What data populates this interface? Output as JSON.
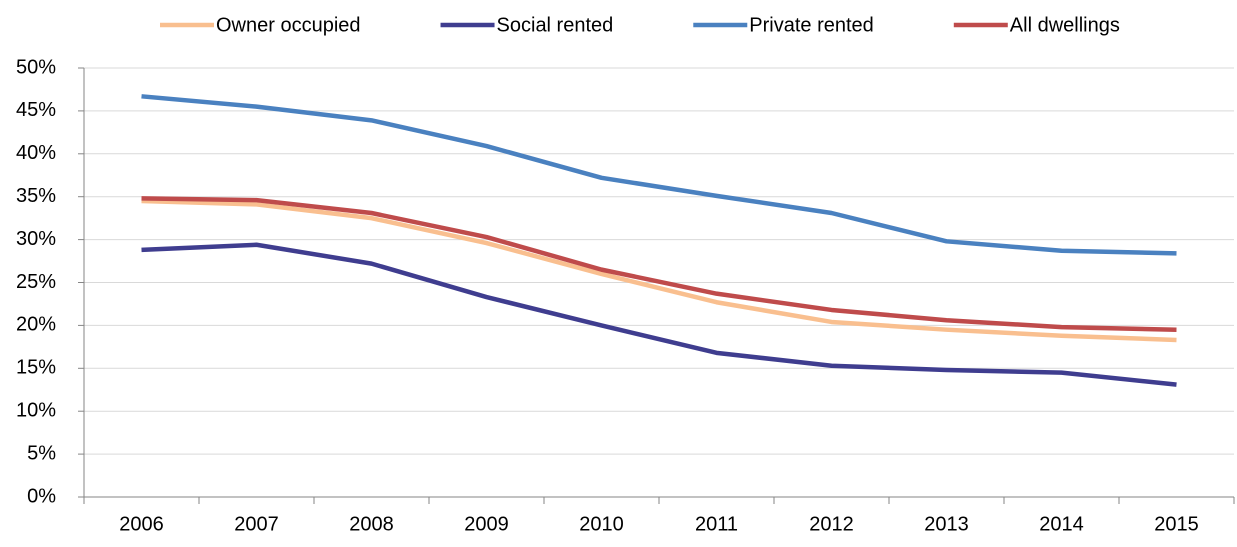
{
  "chart_data": {
    "type": "line",
    "categories": [
      "2006",
      "2007",
      "2008",
      "2009",
      "2010",
      "2011",
      "2012",
      "2013",
      "2014",
      "2015"
    ],
    "series": [
      {
        "name": "Owner occupied",
        "color": "#f9bf8f",
        "values": [
          34.5,
          34.1,
          32.5,
          29.6,
          26.0,
          22.7,
          20.4,
          19.5,
          18.8,
          18.3
        ]
      },
      {
        "name": "Social rented",
        "color": "#3f3d8f",
        "values": [
          28.8,
          29.4,
          27.2,
          23.3,
          20.0,
          16.8,
          15.3,
          14.8,
          14.5,
          13.1
        ]
      },
      {
        "name": "Private rented",
        "color": "#4a81c0",
        "values": [
          46.7,
          45.5,
          43.9,
          40.9,
          37.2,
          35.1,
          33.1,
          29.8,
          28.7,
          28.4
        ]
      },
      {
        "name": "All dwellings",
        "color": "#bf4b4b",
        "values": [
          34.8,
          34.6,
          33.1,
          30.3,
          26.5,
          23.7,
          21.8,
          20.6,
          19.8,
          19.5
        ]
      }
    ],
    "ylim": [
      0,
      50
    ],
    "yticks": [
      {
        "value": 0,
        "label": "0%"
      },
      {
        "value": 5,
        "label": "5%"
      },
      {
        "value": 10,
        "label": "10%"
      },
      {
        "value": 15,
        "label": "15%"
      },
      {
        "value": 20,
        "label": "20%"
      },
      {
        "value": 25,
        "label": "25%"
      },
      {
        "value": 30,
        "label": "30%"
      },
      {
        "value": 35,
        "label": "35%"
      },
      {
        "value": 40,
        "label": "40%"
      },
      {
        "value": 45,
        "label": "45%"
      },
      {
        "value": 50,
        "label": "50%"
      }
    ],
    "grid": true,
    "legend": "top"
  }
}
